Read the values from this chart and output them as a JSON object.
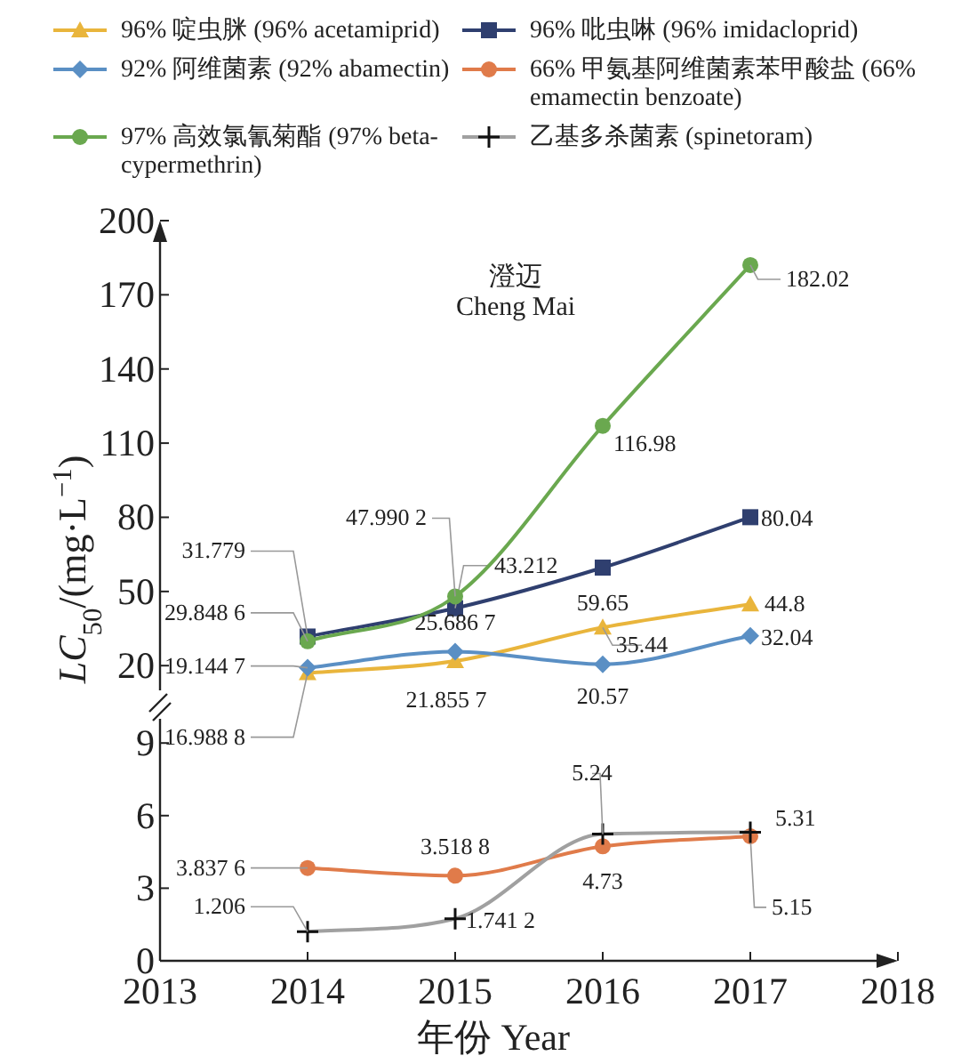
{
  "chart_data": [
    {
      "type": "line",
      "title": "澄迈\nCheng Mai",
      "ylabel": "LC$_{50}$/(mg·L$^{−1}$)",
      "x": [
        2014,
        2015,
        2016,
        2017
      ],
      "xlim": [
        2013,
        2018
      ],
      "ylim": [
        10,
        200
      ],
      "yticks": [
        20,
        50,
        80,
        110,
        140,
        170,
        200
      ],
      "tick_labels": "y",
      "grid": false,
      "legend": "top",
      "series": [
        {
          "name": "96% 啶虫脒 (96% acetamiprid)",
          "color": "#e9b53c",
          "marker": "triangle",
          "values": [
            16.988,
            21.855,
            35.44,
            44.8
          ],
          "value_labels": [
            "16.988 8",
            "21.855 7",
            "35.44",
            "44.8"
          ]
        },
        {
          "name": "96% 吡虫啉 (96% imidacloprid)",
          "color": "#2f3f6f",
          "marker": "square",
          "values": [
            31.779,
            43.212,
            59.65,
            80.04
          ],
          "value_labels": [
            "31.779",
            "43.212",
            "59.65",
            "80.04"
          ]
        },
        {
          "name": "92% 阿维菌素 (92% abamectin)",
          "color": "#5a8fc4",
          "marker": "diamond",
          "values": [
            19.144,
            25.686,
            20.57,
            32.04
          ],
          "value_labels": [
            "19.144 7",
            "25.686 7",
            "20.57",
            "32.04"
          ]
        },
        {
          "name": "97% 高效氯氰菊酯 (97% beta-cypermethrin)",
          "color": "#6aa84f",
          "marker": "circle",
          "values": [
            29.848,
            47.99,
            116.98,
            182.02
          ],
          "value_labels": [
            "29.848 6",
            "47.990 2",
            "116.98",
            "182.02"
          ]
        }
      ]
    },
    {
      "type": "line",
      "xlabel": "年份 Year",
      "x": [
        2014,
        2015,
        2016,
        2017
      ],
      "xlim": [
        2013,
        2018
      ],
      "xticks": [
        2013,
        2014,
        2015,
        2016,
        2017,
        2018
      ],
      "ylim": [
        0,
        10
      ],
      "yticks": [
        0,
        3,
        6,
        9
      ],
      "grid": false,
      "legend": "top",
      "series": [
        {
          "name": "66% 甲氨基阿维菌素苯甲酸盐 (66% emamectin benzoate)",
          "color": "#e07b4a",
          "marker": "circle",
          "values": [
            3.837,
            3.518,
            4.73,
            5.15
          ],
          "value_labels": [
            "3.837 6",
            "3.518 8",
            "4.73",
            "5.15"
          ]
        },
        {
          "name": "乙基多杀菌素 (spinetoram)",
          "color": "#a0a0a0",
          "marker": "cross",
          "values": [
            1.206,
            1.741,
            5.24,
            5.31
          ],
          "value_labels": [
            "1.206",
            "1.741 2",
            "5.24",
            "5.31"
          ]
        }
      ]
    }
  ]
}
